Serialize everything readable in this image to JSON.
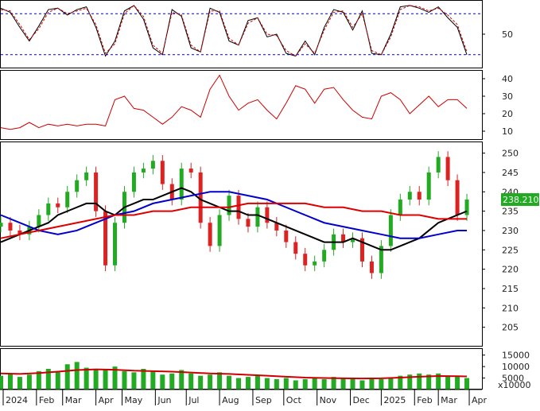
{
  "chart_data": [
    {
      "type": "line",
      "panel": "stochastic",
      "yticks": [
        50
      ],
      "reference_lines": [
        20,
        80
      ],
      "series": [
        {
          "color": "#000000",
          "style": "solid",
          "x": [
            0,
            0.02,
            0.04,
            0.06,
            0.08,
            0.1,
            0.12,
            0.14,
            0.16,
            0.18,
            0.2,
            0.22,
            0.24,
            0.26,
            0.28,
            0.3,
            0.32,
            0.34,
            0.36,
            0.38,
            0.4,
            0.42,
            0.44,
            0.46,
            0.48,
            0.5,
            0.52,
            0.54,
            0.56,
            0.58,
            0.6,
            0.62,
            0.64,
            0.66,
            0.68,
            0.7,
            0.72,
            0.74,
            0.76,
            0.78,
            0.8,
            0.82,
            0.84,
            0.86,
            0.88,
            0.9,
            0.92,
            0.94,
            0.96,
            0.98
          ],
          "values": [
            88,
            82,
            60,
            40,
            62,
            86,
            88,
            78,
            86,
            90,
            60,
            18,
            40,
            84,
            92,
            72,
            30,
            20,
            86,
            76,
            30,
            24,
            88,
            82,
            40,
            34,
            70,
            74,
            46,
            50,
            22,
            18,
            40,
            20,
            60,
            86,
            82,
            56,
            84,
            22,
            20,
            50,
            90,
            92,
            88,
            82,
            90,
            74,
            60,
            20
          ]
        },
        {
          "color": "#cc0000",
          "style": "dashed",
          "x": [
            0,
            0.02,
            0.04,
            0.06,
            0.08,
            0.1,
            0.12,
            0.14,
            0.16,
            0.18,
            0.2,
            0.22,
            0.24,
            0.26,
            0.28,
            0.3,
            0.32,
            0.34,
            0.36,
            0.38,
            0.4,
            0.42,
            0.44,
            0.46,
            0.48,
            0.5,
            0.52,
            0.54,
            0.56,
            0.58,
            0.6,
            0.62,
            0.64,
            0.66,
            0.68,
            0.7,
            0.72,
            0.74,
            0.76,
            0.78,
            0.8,
            0.82,
            0.84,
            0.86,
            0.88,
            0.9,
            0.92,
            0.94,
            0.96,
            0.98
          ],
          "values": [
            86,
            84,
            64,
            42,
            58,
            82,
            88,
            80,
            84,
            88,
            64,
            22,
            36,
            80,
            92,
            76,
            34,
            22,
            82,
            78,
            34,
            24,
            84,
            84,
            44,
            34,
            66,
            74,
            50,
            48,
            26,
            18,
            36,
            22,
            56,
            82,
            84,
            60,
            80,
            26,
            20,
            46,
            86,
            92,
            90,
            84,
            88,
            78,
            64,
            24
          ]
        }
      ]
    },
    {
      "type": "line",
      "panel": "adx",
      "yticks": [
        10,
        20,
        30,
        40
      ],
      "ylim": [
        5,
        45
      ],
      "series": [
        {
          "color": "#cc0000",
          "x": [
            0,
            0.02,
            0.04,
            0.06,
            0.08,
            0.1,
            0.12,
            0.14,
            0.16,
            0.18,
            0.2,
            0.22,
            0.24,
            0.26,
            0.28,
            0.3,
            0.32,
            0.34,
            0.36,
            0.38,
            0.4,
            0.42,
            0.44,
            0.46,
            0.48,
            0.5,
            0.52,
            0.54,
            0.56,
            0.58,
            0.6,
            0.62,
            0.64,
            0.66,
            0.68,
            0.7,
            0.72,
            0.74,
            0.76,
            0.78,
            0.8,
            0.82,
            0.84,
            0.86,
            0.88,
            0.9,
            0.92,
            0.94,
            0.96,
            0.98
          ],
          "values": [
            12,
            11,
            12,
            15,
            12,
            14,
            13,
            14,
            13,
            14,
            14,
            13,
            28,
            30,
            23,
            22,
            18,
            14,
            18,
            24,
            22,
            18,
            34,
            42,
            30,
            22,
            26,
            28,
            22,
            17,
            26,
            36,
            34,
            26,
            34,
            35,
            28,
            22,
            18,
            17,
            30,
            32,
            28,
            20,
            25,
            30,
            24,
            28,
            28,
            23
          ]
        }
      ]
    },
    {
      "type": "candlestick",
      "panel": "price",
      "yticks": [
        205,
        210,
        215,
        220,
        225,
        230,
        235,
        240,
        245,
        250
      ],
      "ylim": [
        200,
        253
      ],
      "last_price_label": "238.2100",
      "x": [
        0,
        0.02,
        0.04,
        0.06,
        0.08,
        0.1,
        0.12,
        0.14,
        0.16,
        0.18,
        0.2,
        0.22,
        0.24,
        0.26,
        0.28,
        0.3,
        0.32,
        0.34,
        0.36,
        0.38,
        0.4,
        0.42,
        0.44,
        0.46,
        0.48,
        0.5,
        0.52,
        0.54,
        0.56,
        0.58,
        0.6,
        0.62,
        0.64,
        0.66,
        0.68,
        0.7,
        0.72,
        0.74,
        0.76,
        0.78,
        0.8,
        0.82,
        0.84,
        0.86,
        0.88,
        0.9,
        0.92,
        0.94,
        0.96,
        0.98
      ],
      "close": [
        232,
        230,
        229,
        231,
        234,
        237,
        236,
        240,
        243,
        245,
        235,
        221,
        232,
        240,
        245,
        246,
        248,
        242,
        238,
        246,
        245,
        232,
        226,
        234,
        239,
        233,
        231,
        236,
        232,
        230,
        227,
        224,
        221,
        222,
        225,
        229,
        227,
        228,
        222,
        219,
        226,
        234,
        238,
        240,
        238,
        245,
        249,
        243,
        234,
        238
      ],
      "series": [
        {
          "color": "#000000",
          "x": [
            0,
            0.02,
            0.04,
            0.06,
            0.08,
            0.1,
            0.12,
            0.14,
            0.16,
            0.18,
            0.2,
            0.22,
            0.24,
            0.26,
            0.28,
            0.3,
            0.32,
            0.34,
            0.36,
            0.38,
            0.4,
            0.42,
            0.44,
            0.46,
            0.48,
            0.5,
            0.52,
            0.54,
            0.56,
            0.58,
            0.6,
            0.62,
            0.64,
            0.66,
            0.68,
            0.7,
            0.72,
            0.74,
            0.76,
            0.78,
            0.8,
            0.82,
            0.84,
            0.86,
            0.88,
            0.9,
            0.92,
            0.94,
            0.96,
            0.98
          ],
          "values": [
            227,
            228,
            229,
            230,
            231,
            232,
            234,
            235,
            236,
            237,
            237,
            235,
            234,
            236,
            237,
            238,
            238,
            239,
            240,
            241,
            240,
            238,
            237,
            236,
            235,
            235,
            234,
            234,
            233,
            232,
            231,
            230,
            229,
            228,
            227,
            227,
            227,
            228,
            227,
            226,
            225,
            225,
            226,
            227,
            228,
            230,
            232,
            233,
            234,
            235
          ]
        },
        {
          "color": "#0000cc",
          "x": [
            0,
            0.04,
            0.08,
            0.12,
            0.16,
            0.2,
            0.24,
            0.28,
            0.32,
            0.36,
            0.4,
            0.44,
            0.48,
            0.52,
            0.56,
            0.6,
            0.64,
            0.68,
            0.72,
            0.76,
            0.8,
            0.84,
            0.88,
            0.92,
            0.96,
            0.98
          ],
          "values": [
            234,
            232,
            230,
            229,
            230,
            232,
            234,
            235,
            237,
            238,
            239,
            240,
            240,
            239,
            238,
            236,
            234,
            232,
            231,
            230,
            229,
            228,
            228,
            229,
            230,
            230
          ]
        },
        {
          "color": "#dd0000",
          "x": [
            0,
            0.04,
            0.08,
            0.12,
            0.16,
            0.2,
            0.24,
            0.28,
            0.32,
            0.36,
            0.4,
            0.44,
            0.48,
            0.52,
            0.56,
            0.6,
            0.64,
            0.68,
            0.72,
            0.76,
            0.8,
            0.84,
            0.88,
            0.92,
            0.96,
            0.98
          ],
          "values": [
            228,
            229,
            230,
            231,
            232,
            233,
            234,
            234,
            235,
            235,
            236,
            236,
            236,
            237,
            237,
            237,
            237,
            236,
            236,
            235,
            235,
            234,
            234,
            233,
            233,
            233
          ]
        }
      ]
    },
    {
      "type": "bar",
      "panel": "volume",
      "yticks": [
        5000,
        10000,
        15000
      ],
      "ylim": [
        0,
        18000
      ],
      "unit_label": "x10000",
      "x": [
        0,
        0.02,
        0.04,
        0.06,
        0.08,
        0.1,
        0.12,
        0.14,
        0.16,
        0.18,
        0.2,
        0.22,
        0.24,
        0.26,
        0.28,
        0.3,
        0.32,
        0.34,
        0.36,
        0.38,
        0.4,
        0.42,
        0.44,
        0.46,
        0.48,
        0.5,
        0.52,
        0.54,
        0.56,
        0.58,
        0.6,
        0.62,
        0.64,
        0.66,
        0.68,
        0.7,
        0.72,
        0.74,
        0.76,
        0.78,
        0.8,
        0.82,
        0.84,
        0.86,
        0.88,
        0.9,
        0.92,
        0.94,
        0.96,
        0.98
      ],
      "values": [
        6000,
        7000,
        5500,
        6500,
        8000,
        9000,
        7500,
        11000,
        12000,
        9500,
        8500,
        9000,
        10000,
        8000,
        7500,
        9000,
        8000,
        6500,
        7000,
        8500,
        7000,
        6000,
        6500,
        7500,
        6000,
        5000,
        5500,
        6000,
        5000,
        4500,
        5000,
        4000,
        4500,
        5000,
        4500,
        5500,
        5000,
        4500,
        4000,
        5000,
        4500,
        5000,
        6000,
        6500,
        7000,
        6500,
        7000,
        6000,
        5500,
        5000
      ],
      "series": [
        {
          "color": "#cc0000",
          "x": [
            0,
            0.04,
            0.08,
            0.12,
            0.16,
            0.2,
            0.24,
            0.28,
            0.32,
            0.36,
            0.4,
            0.44,
            0.48,
            0.52,
            0.56,
            0.6,
            0.64,
            0.68,
            0.72,
            0.76,
            0.8,
            0.84,
            0.88,
            0.92,
            0.96,
            0.98
          ],
          "values": [
            7000,
            6800,
            7200,
            7800,
            8500,
            8800,
            8600,
            8200,
            8000,
            7800,
            7400,
            7000,
            6800,
            6400,
            6000,
            5600,
            5200,
            5000,
            4900,
            4800,
            4900,
            5200,
            5600,
            5900,
            5800,
            5700
          ]
        }
      ]
    }
  ],
  "x_axis": {
    "ticks": [
      {
        "label": "2024",
        "pos": 0.005
      },
      {
        "label": "Feb",
        "pos": 0.075
      },
      {
        "label": "Mar",
        "pos": 0.13
      },
      {
        "label": "Apr",
        "pos": 0.2
      },
      {
        "label": "May",
        "pos": 0.255
      },
      {
        "label": "Jun",
        "pos": 0.325
      },
      {
        "label": "Jul",
        "pos": 0.39
      },
      {
        "label": "Aug",
        "pos": 0.46
      },
      {
        "label": "Sep",
        "pos": 0.53
      },
      {
        "label": "Oct",
        "pos": 0.595
      },
      {
        "label": "Nov",
        "pos": 0.665
      },
      {
        "label": "Dec",
        "pos": 0.735
      },
      {
        "label": "2025",
        "pos": 0.8
      },
      {
        "label": "Feb",
        "pos": 0.87
      },
      {
        "label": "Mar",
        "pos": 0.92
      },
      {
        "label": "Apr",
        "pos": 0.985
      }
    ]
  },
  "colors": {
    "up_candle": "#22aa22",
    "down_candle": "#dd2222",
    "volume_bars": "#22aa22",
    "price_tag_bg": "#22aa22",
    "price_tag_text": "#ffffff",
    "axis": "#000000",
    "ref_line": "#0000cc"
  }
}
